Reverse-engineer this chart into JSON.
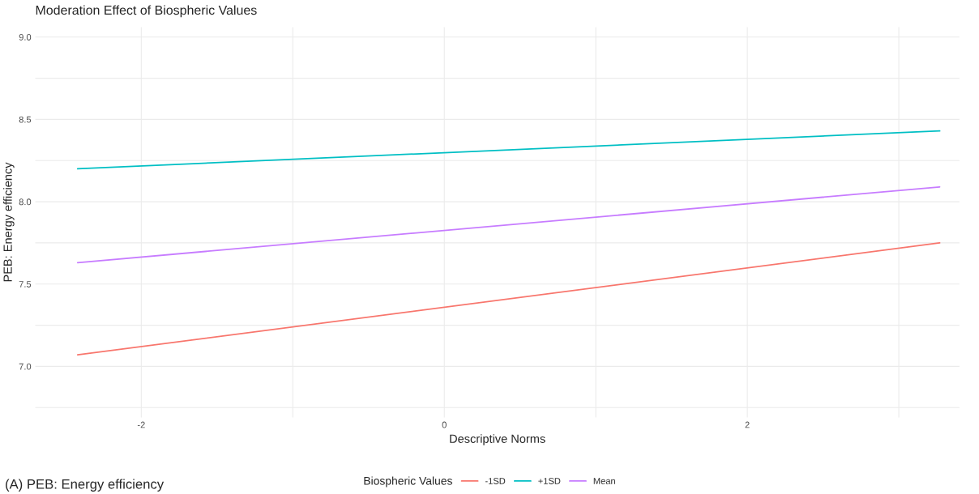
{
  "chart_data": {
    "type": "line",
    "title": "Moderation Effect of Biospheric Values",
    "xlabel": "Descriptive Norms",
    "ylabel": "PEB: Energy efficiency",
    "legend_title": "Biospheric Values",
    "x": [
      -2.42,
      3.27
    ],
    "series": [
      {
        "name": "-1SD",
        "color": "#f8766d",
        "values": [
          7.07,
          7.75
        ]
      },
      {
        "name": "+1SD",
        "color": "#00bfc4",
        "values": [
          8.2,
          8.43
        ]
      },
      {
        "name": "Mean",
        "color": "#c77cff",
        "values": [
          7.63,
          8.09
        ]
      }
    ],
    "xlim": [
      -2.7,
      3.4
    ],
    "ylim": [
      6.69,
      9.06
    ],
    "xticks": [
      -2,
      {
        "value": -1,
        "label": null
      },
      0,
      {
        "value": 1,
        "label": null
      },
      2,
      {
        "value": 3,
        "label": null
      }
    ],
    "yticks": [
      {
        "value": 6.75,
        "label": null
      },
      "7.0",
      {
        "value": 7.25,
        "label": null
      },
      7.5,
      {
        "value": 7.75,
        "label": null
      },
      "8.0",
      {
        "value": 8.25,
        "label": null
      },
      8.5,
      {
        "value": 8.75,
        "label": null
      },
      "9.0"
    ],
    "grid": true,
    "legend": "bottom",
    "line_style": "solid",
    "marker": "none",
    "annotations": [
      "(A) PEB: Energy efficiency"
    ]
  }
}
